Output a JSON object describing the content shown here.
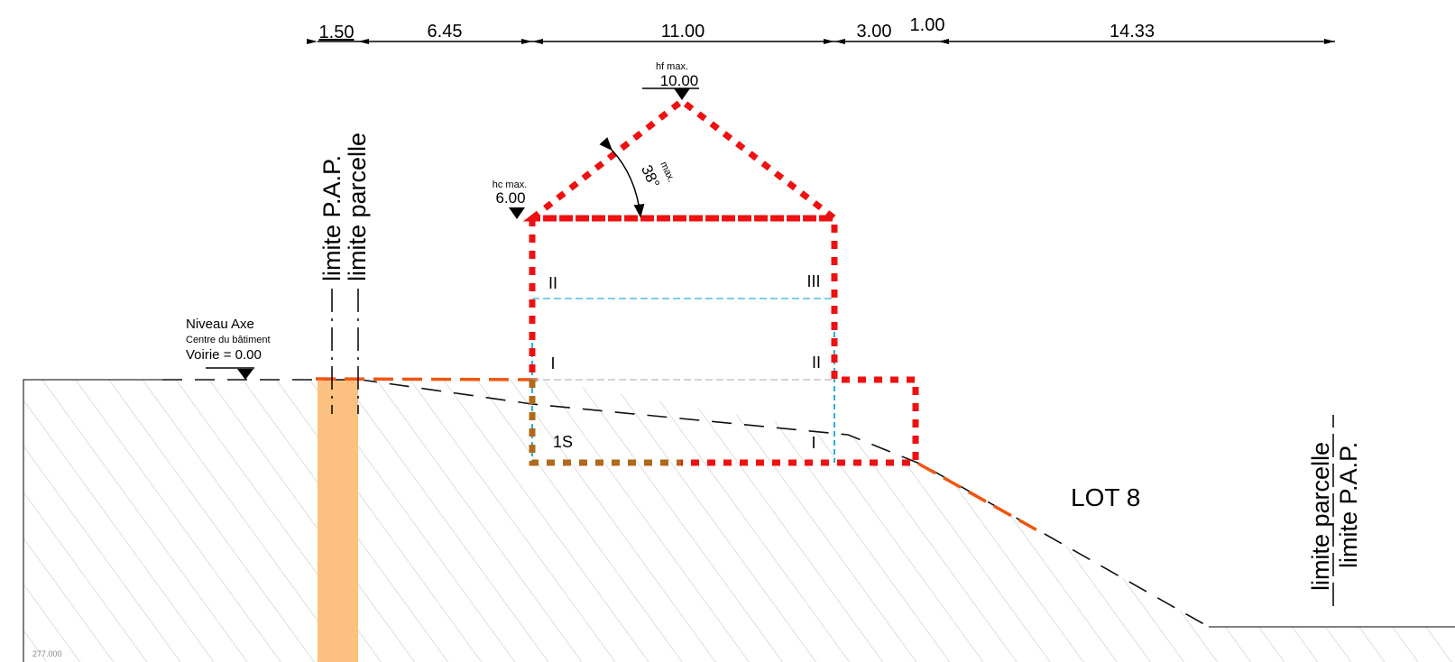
{
  "dimensions": {
    "d1": "1.50",
    "d2": "6.45",
    "d3": "11.00",
    "d4": "3.00",
    "d5": "1.00",
    "d6": "14.33"
  },
  "heights": {
    "hf_label": "hf max.",
    "hf_value": "10.00",
    "hc_label": "hc max.",
    "hc_value": "6.00"
  },
  "angle": {
    "max_label": "max.",
    "value": "38°"
  },
  "limits": {
    "left_pap": "limite P.A.P.",
    "left_parcelle": "limite parcelle",
    "right_parcelle": "limite parcelle",
    "right_pap": "limite P.A.P."
  },
  "niveau": {
    "line1": "Niveau Axe",
    "line2": "Centre du bâtiment",
    "line3": "Voirie = 0.00"
  },
  "floors": {
    "left": [
      "II",
      "I",
      "1S"
    ],
    "right": [
      "III",
      "II",
      "I"
    ]
  },
  "lot_label": "LOT 8",
  "corner_text": "277.000",
  "colors": {
    "max_envelope": "#ee1111",
    "terrain_proposed": "#ee5511",
    "easement_strip": "#fcc080",
    "basement_edge": "#b06a1a",
    "floor_lines": "#2ab0d8",
    "hatch": "#c8c8c8"
  }
}
